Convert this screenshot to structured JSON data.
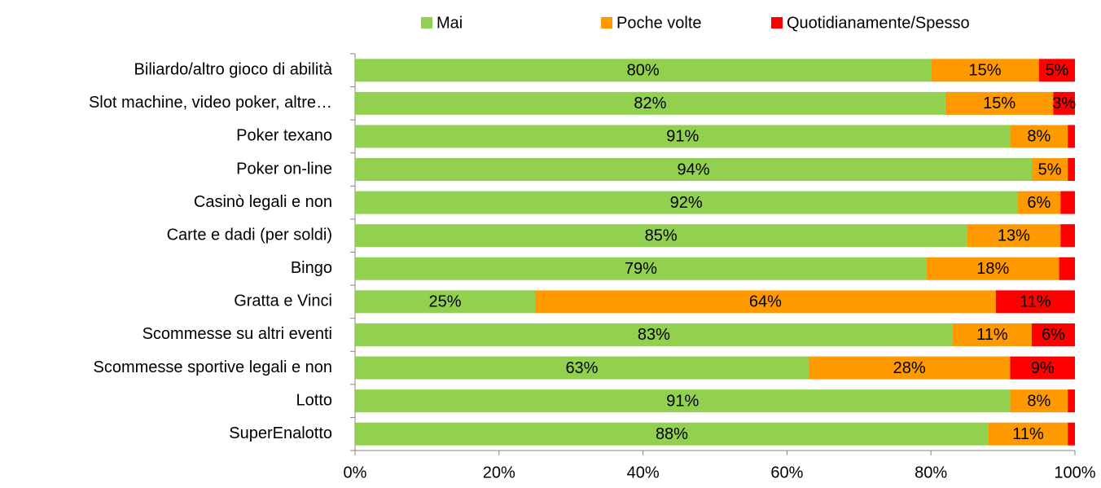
{
  "chart_data": {
    "type": "stacked-bar-horizontal",
    "categories": [
      "Biliardo/altro gioco di abilità",
      "Slot machine, video poker, altre…",
      "Poker texano",
      "Poker on-line",
      "Casinò legali e non",
      "Carte e dadi (per soldi)",
      "Bingo",
      "Gratta e Vinci",
      "Scommesse su altri eventi",
      "Scommesse sportive legali e non",
      "Lotto",
      "SuperEnalotto"
    ],
    "series": [
      {
        "name": "Mai",
        "color": "#92d050",
        "values": [
          80,
          82,
          91,
          94,
          92,
          85,
          79.4,
          25,
          83,
          63,
          91,
          88
        ],
        "value_labels": [
          "80%",
          "82%",
          "91%",
          "94%",
          "92%",
          "85%",
          "79%",
          "25%",
          "83%",
          "63%",
          "91%",
          "88%"
        ]
      },
      {
        "name": "Poche volte",
        "color": "#ff9900",
        "values": [
          15,
          15,
          8,
          5,
          6,
          13,
          18.4,
          64,
          11,
          28,
          8,
          11
        ],
        "value_labels": [
          "15%",
          "15%",
          "8%",
          "5%",
          "6%",
          "13%",
          "18%",
          "64%",
          "11%",
          "28%",
          "8%",
          "11%"
        ]
      },
      {
        "name": "Quotidianamente/Spesso",
        "color": "#ff0000",
        "values": [
          5,
          3,
          1,
          1,
          2,
          2,
          2.2,
          11,
          6,
          9,
          1,
          1
        ],
        "value_labels": [
          "5%",
          "3%",
          null,
          null,
          null,
          null,
          null,
          "11%",
          "6%",
          "9%",
          null,
          null
        ]
      }
    ],
    "xlim": [
      0,
      100
    ],
    "xticks": [
      {
        "value": 0,
        "label": "0%"
      },
      {
        "value": 20,
        "label": "20%"
      },
      {
        "value": 40,
        "label": "40%"
      },
      {
        "value": 60,
        "label": "60%"
      },
      {
        "value": 80,
        "label": "80%"
      },
      {
        "value": 100,
        "label": "100%"
      }
    ],
    "grid": false,
    "legend": "top"
  }
}
